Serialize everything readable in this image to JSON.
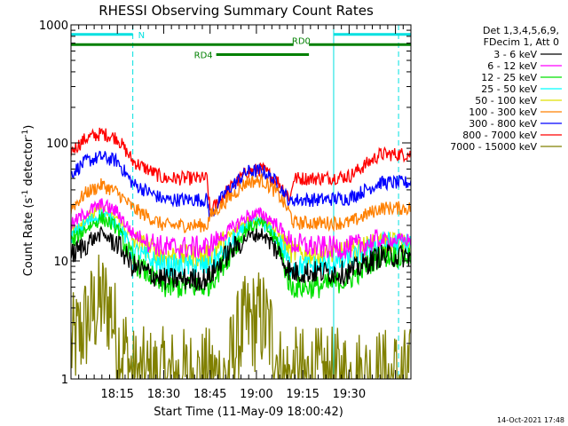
{
  "chart_data": {
    "type": "line",
    "title": "RHESSI Observing Summary Count Rates",
    "xlabel": "Start Time (11-May-09 18:00:42)",
    "ylabel_main": "Count Rate (s",
    "ylabel_sup1": "-1",
    "ylabel_mid": " detector",
    "ylabel_sup2": "-1",
    "ylabel_end": ")",
    "yscale": "log",
    "ylim": [
      1,
      1000
    ],
    "xlim_min": [
      0,
      110
    ],
    "x_ticks": [
      {
        "min": 15,
        "label": "18:15"
      },
      {
        "min": 30,
        "label": "18:30"
      },
      {
        "min": 45,
        "label": "18:45"
      },
      {
        "min": 60,
        "label": "19:00"
      },
      {
        "min": 75,
        "label": "19:15"
      },
      {
        "min": 90,
        "label": "19:30"
      }
    ],
    "y_ticks": [
      {
        "value": 1,
        "label": "1"
      },
      {
        "value": 10,
        "label": "10"
      },
      {
        "value": 100,
        "label": "100"
      },
      {
        "value": 1000,
        "label": "1000"
      }
    ],
    "legend_header": [
      "Det 1,3,4,5,6,9,",
      "FDecim 1, Att 0"
    ],
    "series": [
      {
        "name": "3 - 6 keV",
        "color": "#000000",
        "points": [
          [
            0,
            11
          ],
          [
            5,
            14
          ],
          [
            10,
            17
          ],
          [
            15,
            14
          ],
          [
            20,
            9
          ],
          [
            30,
            7
          ],
          [
            44,
            7
          ],
          [
            50,
            11
          ],
          [
            57,
            16
          ],
          [
            62,
            17
          ],
          [
            67,
            12
          ],
          [
            71,
            8
          ],
          [
            80,
            8
          ],
          [
            90,
            8
          ],
          [
            100,
            11
          ]
        ]
      },
      {
        "name": "6 - 12 keV",
        "color": "#ff00ff",
        "points": [
          [
            0,
            20
          ],
          [
            5,
            26
          ],
          [
            10,
            30
          ],
          [
            15,
            26
          ],
          [
            20,
            17
          ],
          [
            30,
            13
          ],
          [
            44,
            13
          ],
          [
            50,
            17
          ],
          [
            57,
            24
          ],
          [
            62,
            25
          ],
          [
            67,
            20
          ],
          [
            71,
            14
          ],
          [
            80,
            13
          ],
          [
            90,
            13
          ],
          [
            100,
            15
          ]
        ]
      },
      {
        "name": "12 - 25 keV",
        "color": "#00e000",
        "points": [
          [
            0,
            14
          ],
          [
            5,
            19
          ],
          [
            10,
            23
          ],
          [
            15,
            19
          ],
          [
            20,
            10
          ],
          [
            30,
            6
          ],
          [
            44,
            6
          ],
          [
            50,
            10
          ],
          [
            57,
            19
          ],
          [
            62,
            21
          ],
          [
            67,
            14
          ],
          [
            71,
            6
          ],
          [
            80,
            6
          ],
          [
            90,
            7
          ],
          [
            100,
            11
          ]
        ]
      },
      {
        "name": "25 - 50 keV",
        "color": "#00ffff",
        "points": [
          [
            0,
            16
          ],
          [
            5,
            21
          ],
          [
            10,
            25
          ],
          [
            15,
            21
          ],
          [
            20,
            12
          ],
          [
            30,
            9
          ],
          [
            44,
            9
          ],
          [
            50,
            12
          ],
          [
            57,
            20
          ],
          [
            62,
            21
          ],
          [
            67,
            15
          ],
          [
            71,
            9
          ],
          [
            80,
            9
          ],
          [
            90,
            10
          ],
          [
            100,
            14
          ]
        ]
      },
      {
        "name": "50 - 100 keV",
        "color": "#e0e000",
        "points": [
          [
            0,
            18
          ],
          [
            5,
            23
          ],
          [
            10,
            27
          ],
          [
            15,
            23
          ],
          [
            20,
            15
          ],
          [
            30,
            11
          ],
          [
            44,
            11
          ],
          [
            50,
            15
          ],
          [
            57,
            22
          ],
          [
            62,
            23
          ],
          [
            67,
            17
          ],
          [
            71,
            12
          ],
          [
            80,
            11
          ],
          [
            90,
            12
          ],
          [
            100,
            14
          ]
        ]
      },
      {
        "name": "100 - 300 keV",
        "color": "#ff8000",
        "points": [
          [
            0,
            28
          ],
          [
            5,
            38
          ],
          [
            10,
            44
          ],
          [
            15,
            38
          ],
          [
            20,
            28
          ],
          [
            30,
            20
          ],
          [
            44,
            20
          ],
          [
            45,
            24
          ],
          [
            50,
            32
          ],
          [
            57,
            47
          ],
          [
            62,
            48
          ],
          [
            67,
            37
          ],
          [
            71,
            25
          ],
          [
            72,
            21
          ],
          [
            80,
            21
          ],
          [
            90,
            21
          ],
          [
            100,
            28
          ]
        ]
      },
      {
        "name": "300 - 800 keV",
        "color": "#0000ff",
        "points": [
          [
            0,
            55
          ],
          [
            5,
            70
          ],
          [
            10,
            76
          ],
          [
            15,
            70
          ],
          [
            20,
            45
          ],
          [
            30,
            33
          ],
          [
            44,
            33
          ],
          [
            45,
            24
          ],
          [
            50,
            38
          ],
          [
            57,
            57
          ],
          [
            62,
            58
          ],
          [
            67,
            45
          ],
          [
            71,
            31
          ],
          [
            72,
            33
          ],
          [
            80,
            33
          ],
          [
            90,
            34
          ],
          [
            100,
            46
          ]
        ]
      },
      {
        "name": "800 - 7000 keV",
        "color": "#ff0000",
        "points": [
          [
            0,
            85
          ],
          [
            5,
            110
          ],
          [
            10,
            120
          ],
          [
            15,
            110
          ],
          [
            20,
            70
          ],
          [
            30,
            50
          ],
          [
            44,
            50
          ],
          [
            45,
            26
          ],
          [
            50,
            38
          ],
          [
            57,
            57
          ],
          [
            62,
            60
          ],
          [
            67,
            47
          ],
          [
            71,
            34
          ],
          [
            72,
            50
          ],
          [
            80,
            50
          ],
          [
            90,
            52
          ],
          [
            100,
            80
          ]
        ]
      },
      {
        "name": "7000 - 15000 keV",
        "color": "#808000",
        "points": [
          [
            0,
            1.8
          ],
          [
            5,
            3
          ],
          [
            8,
            4
          ],
          [
            10,
            4.5
          ],
          [
            13,
            4
          ],
          [
            15,
            2
          ],
          [
            18,
            1.6
          ],
          [
            20,
            1
          ],
          [
            50,
            1
          ],
          [
            55,
            2.5
          ],
          [
            58,
            3
          ],
          [
            62,
            3.2
          ],
          [
            66,
            2
          ],
          [
            68,
            1
          ],
          [
            100,
            1
          ]
        ]
      }
    ],
    "annotations": [
      {
        "text": "N",
        "color": "#00e0e0",
        "segments": [
          [
            0,
            20
          ],
          [
            85,
            110
          ]
        ],
        "level": 830
      },
      {
        "text": "RD0",
        "color": "#008000",
        "segments": [
          [
            0,
            72
          ],
          [
            77,
            110
          ]
        ],
        "level": 680
      },
      {
        "text": "RD4",
        "color": "#008000",
        "segments": [
          [
            47,
            77
          ]
        ],
        "level": 560
      }
    ],
    "vertical_markers": {
      "solid_min": [
        0,
        85
      ],
      "dashed_min": [
        20,
        106
      ],
      "color": "#00e0e0"
    }
  },
  "footer": {
    "timestamp": "14-Oct-2021 17:48"
  }
}
